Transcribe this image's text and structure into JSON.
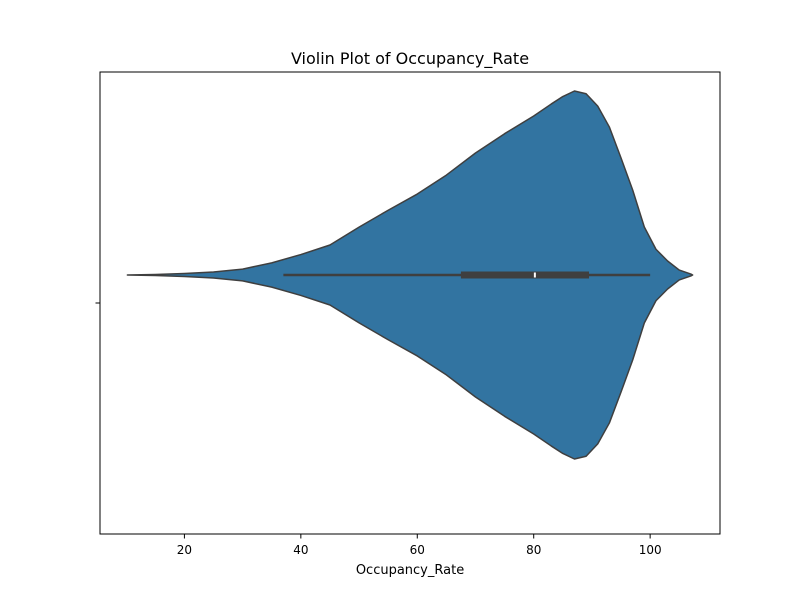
{
  "chart_data": {
    "type": "violin",
    "title": "Violin Plot of Occupancy_Rate",
    "xlabel": "Occupancy_Rate",
    "ylabel": "",
    "orientation": "horizontal",
    "grid": false,
    "xlim": [
      5.5,
      112
    ],
    "x_ticks": [
      20,
      40,
      60,
      80,
      100
    ],
    "colors": {
      "violin_fill": "#3274a1",
      "violin_edge": "#3f3f3f",
      "box": "#3f3f3f",
      "median": "#ffffff",
      "frame": "#000000"
    },
    "box": {
      "whisker_low": 37,
      "q1": 67.5,
      "median": 80.2,
      "q3": 89.5,
      "whisker_high": 100
    },
    "kde_min": 10.2,
    "kde_max": 107.3,
    "density": [
      [
        10.2,
        0.0
      ],
      [
        15,
        0.0025
      ],
      [
        20,
        0.008
      ],
      [
        25,
        0.016
      ],
      [
        30,
        0.032
      ],
      [
        35,
        0.066
      ],
      [
        40,
        0.111
      ],
      [
        45,
        0.163
      ],
      [
        50,
        0.26
      ],
      [
        55,
        0.352
      ],
      [
        60,
        0.44
      ],
      [
        65,
        0.543
      ],
      [
        70,
        0.663
      ],
      [
        75,
        0.768
      ],
      [
        80,
        0.864
      ],
      [
        83,
        0.929
      ],
      [
        85,
        0.97
      ],
      [
        87,
        1.0
      ],
      [
        89,
        0.985
      ],
      [
        91,
        0.918
      ],
      [
        93,
        0.804
      ],
      [
        95,
        0.636
      ],
      [
        97,
        0.462
      ],
      [
        99,
        0.261
      ],
      [
        101,
        0.14
      ],
      [
        103,
        0.076
      ],
      [
        105,
        0.027
      ],
      [
        107,
        0.005
      ],
      [
        107.3,
        0.0
      ]
    ]
  }
}
